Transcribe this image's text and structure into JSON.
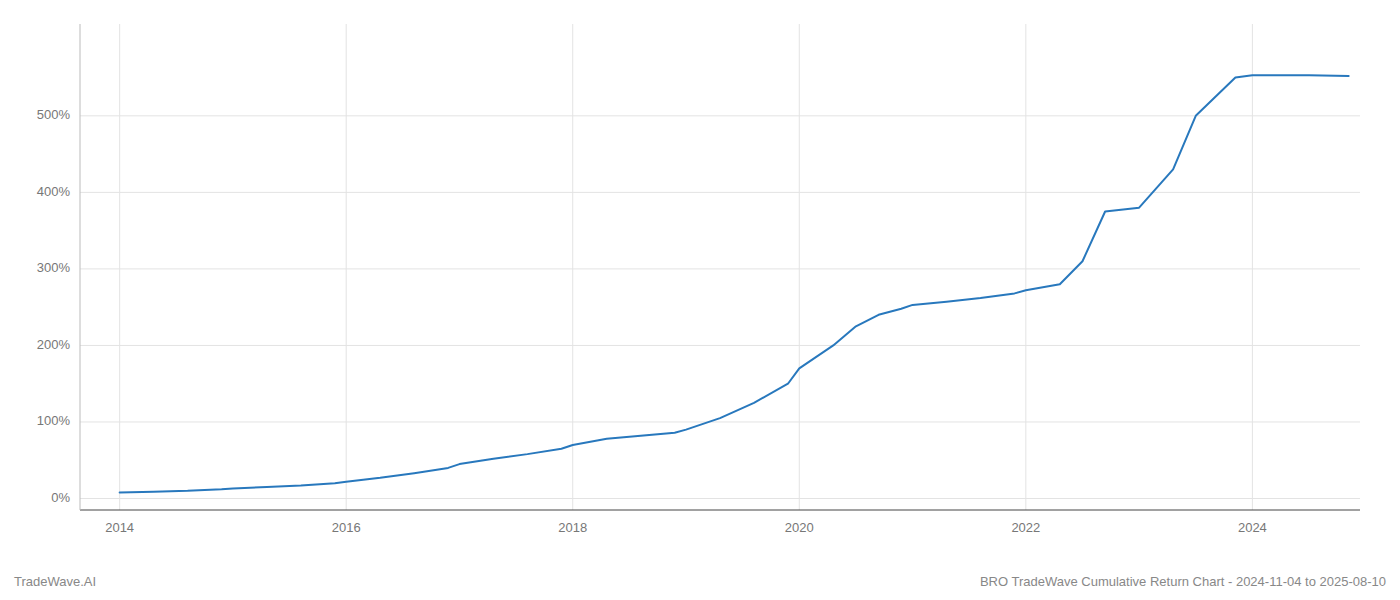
{
  "chart_data": {
    "type": "line",
    "title": "BRO TradeWave Cumulative Return Chart - 2024-11-04 to 2025-08-10",
    "annotations": [
      "TradeWave.AI"
    ],
    "color": "#2878bd",
    "grid": true,
    "x": [
      2014.0,
      2014.3,
      2014.6,
      2014.9,
      2015.0,
      2015.3,
      2015.6,
      2015.9,
      2016.0,
      2016.3,
      2016.6,
      2016.9,
      2017.0,
      2017.3,
      2017.6,
      2017.9,
      2018.0,
      2018.3,
      2018.6,
      2018.9,
      2019.0,
      2019.3,
      2019.6,
      2019.9,
      2020.0,
      2020.3,
      2020.5,
      2020.7,
      2020.9,
      2021.0,
      2021.3,
      2021.6,
      2021.9,
      2022.0,
      2022.3,
      2022.5,
      2022.7,
      2023.0,
      2023.3,
      2023.5,
      2023.85,
      2024.0,
      2024.5,
      2024.85
    ],
    "values": [
      8,
      9,
      10,
      12,
      13,
      15,
      17,
      20,
      22,
      27,
      33,
      40,
      45,
      52,
      58,
      65,
      70,
      78,
      82,
      86,
      90,
      105,
      125,
      150,
      170,
      200,
      225,
      240,
      248,
      253,
      257,
      262,
      268,
      272,
      280,
      310,
      375,
      380,
      430,
      500,
      550,
      553,
      553,
      552
    ],
    "xlim": [
      2013.65,
      2024.95
    ],
    "xticks": [
      2014,
      2016,
      2018,
      2020,
      2022,
      2024
    ],
    "ylim": [
      -15,
      620
    ],
    "yticks": [
      {
        "value": 0,
        "label": "0%"
      },
      {
        "value": 100,
        "label": "100%"
      },
      {
        "value": 200,
        "label": "200%"
      },
      {
        "value": 300,
        "label": "300%"
      },
      {
        "value": 400,
        "label": "400%"
      },
      {
        "value": 500,
        "label": "500%"
      }
    ]
  }
}
